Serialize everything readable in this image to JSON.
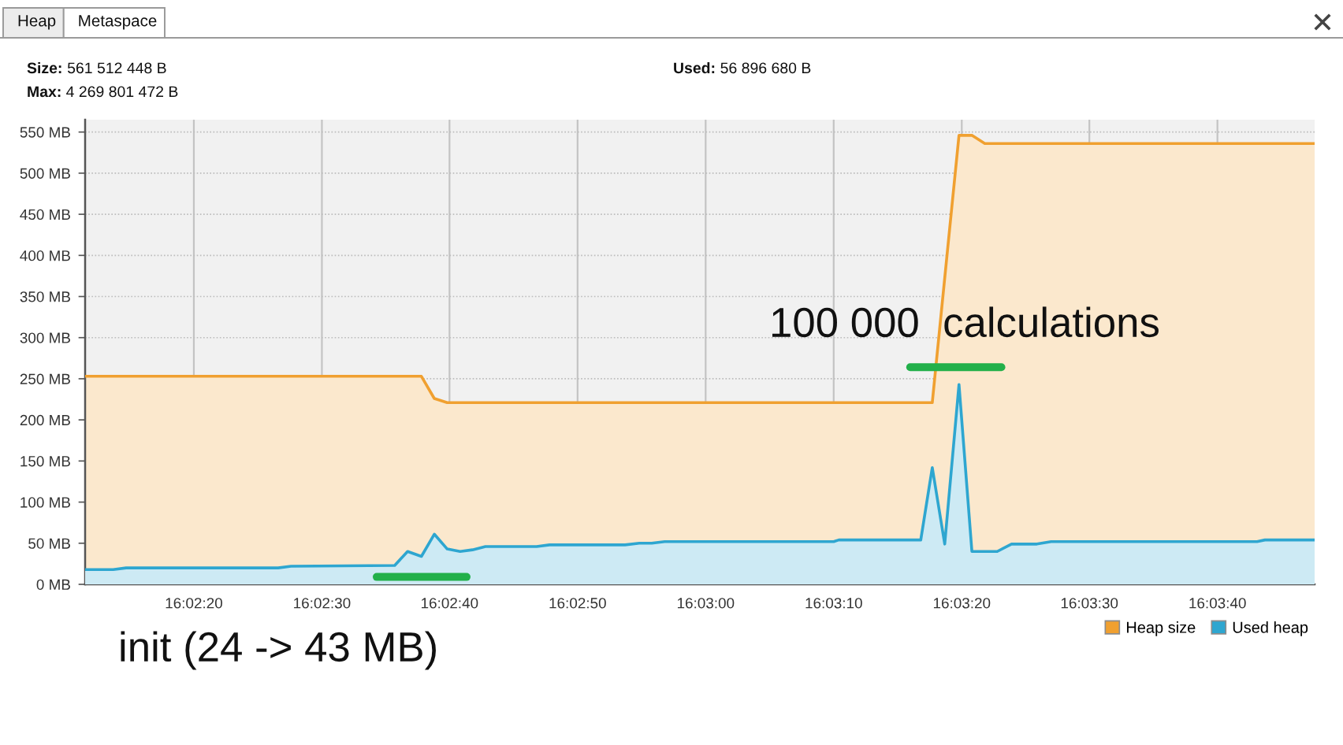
{
  "chart_data": {
    "type": "area",
    "annotations": [
      "Heap",
      "Metaspace",
      "Size: 561 512 448 B",
      "Max: 4 269 801 472 B",
      "Used: 56 896 680 B",
      "100 000  calculations",
      "init (24 -> 43 MB)"
    ],
    "series": [
      {
        "name": "Heap size",
        "color": "#f0a030",
        "x": [
          16.03653,
          16.04383,
          16.04411,
          16.04439,
          16.05492,
          16.0555,
          16.05578,
          16.05606,
          16.06322
        ],
        "values": [
          253,
          253,
          226,
          221,
          221,
          546,
          546,
          536,
          536
        ]
      },
      {
        "name": "Used heap",
        "color": "#2ea6d0",
        "x": [
          16.03653,
          16.03714,
          16.03742,
          16.04072,
          16.041,
          16.04325,
          16.04353,
          16.04383,
          16.04411,
          16.04439,
          16.04467,
          16.04494,
          16.04522,
          16.04633,
          16.04661,
          16.04825,
          16.04856,
          16.04883,
          16.04911,
          16.05278,
          16.05289,
          16.05467,
          16.05492,
          16.05519,
          16.0555,
          16.05578,
          16.05633,
          16.05664,
          16.05719,
          16.0575,
          16.06197,
          16.06214,
          16.06322
        ],
        "values": [
          18,
          18,
          20,
          20,
          22,
          23,
          40,
          34,
          61,
          43,
          40,
          42,
          46,
          46,
          48,
          48,
          50,
          50,
          52,
          52,
          54,
          54,
          142,
          49,
          243,
          40,
          40,
          49,
          49,
          52,
          52,
          54,
          54
        ]
      },
      {
        "type": "line",
        "color": "#22b04a",
        "x": [
          16.04286,
          16.04481
        ],
        "values": [
          9,
          9
        ]
      },
      {
        "type": "line",
        "color": "#22b04a",
        "x": [
          16.05444,
          16.05642
        ],
        "values": [
          264,
          264
        ]
      }
    ],
    "xlim": [
      16.03653,
      16.06322
    ],
    "xticks": [
      {
        "value": 16.03889,
        "label": "16:02:20"
      },
      {
        "value": 16.04167,
        "label": "16:02:30"
      },
      {
        "value": 16.04444,
        "label": "16:02:40"
      },
      {
        "value": 16.04722,
        "label": "16:02:50"
      },
      {
        "value": 16.05,
        "label": "16:03:00"
      },
      {
        "value": 16.05278,
        "label": "16:03:10"
      },
      {
        "value": 16.05556,
        "label": "16:03:20"
      },
      {
        "value": 16.05833,
        "label": "16:03:30"
      },
      {
        "value": 16.06111,
        "label": "16:03:40"
      }
    ],
    "ylim": [
      0,
      565
    ],
    "yticks": [
      {
        "value": 0,
        "label": "0 MB"
      },
      {
        "value": 50,
        "label": "50 MB"
      },
      {
        "value": 100,
        "label": "100 MB"
      },
      {
        "value": 150,
        "label": "150 MB"
      },
      {
        "value": 200,
        "label": "200 MB"
      },
      {
        "value": 250,
        "label": "250 MB"
      },
      {
        "value": 300,
        "label": "300 MB"
      },
      {
        "value": 350,
        "label": "350 MB"
      },
      {
        "value": 400,
        "label": "400 MB"
      },
      {
        "value": 450,
        "label": "450 MB"
      },
      {
        "value": 500,
        "label": "500 MB"
      },
      {
        "value": 550,
        "label": "550 MB"
      }
    ],
    "grid": true,
    "legend": "bottom right"
  }
}
